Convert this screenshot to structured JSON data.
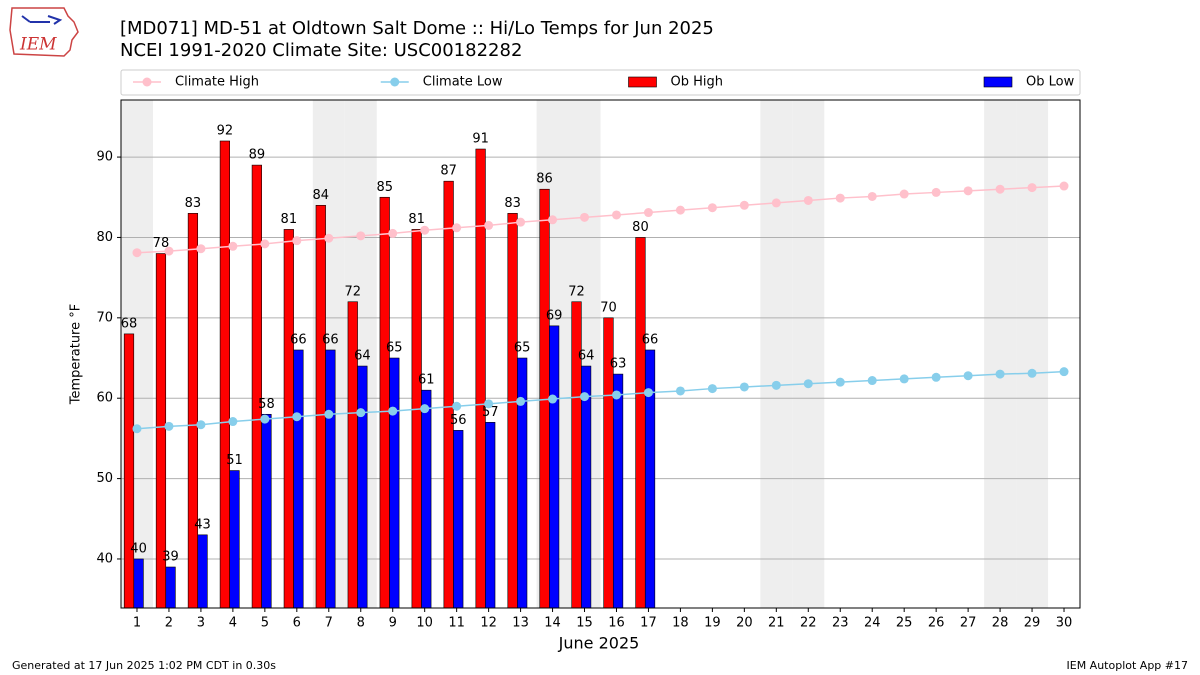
{
  "chart_data": {
    "type": "bar",
    "title": "[MD071] MD-51 at Oldtown Salt Dome  :: Hi/Lo Temps for Jun 2025",
    "subtitle": "NCEI 1991-2020 Climate Site: USC00182282",
    "x_label": "June 2025",
    "y_label": "Temperature °F",
    "logo_text": "IEM",
    "footer_left": "Generated at 17 Jun 2025 1:02 PM CDT in 0.30s",
    "footer_right": "IEM Autoplot App #17",
    "x": [
      1,
      2,
      3,
      4,
      5,
      6,
      7,
      8,
      9,
      10,
      11,
      12,
      13,
      14,
      15,
      16,
      17,
      18,
      19,
      20,
      21,
      22,
      23,
      24,
      25,
      26,
      27,
      28,
      29,
      30
    ],
    "xlim": [
      0.5,
      30.5
    ],
    "xticks": [
      1,
      2,
      3,
      4,
      5,
      6,
      7,
      8,
      9,
      10,
      11,
      12,
      13,
      14,
      15,
      16,
      17,
      18,
      19,
      20,
      21,
      22,
      23,
      24,
      25,
      26,
      27,
      28,
      29,
      30
    ],
    "ylim": [
      33.9,
      97.1
    ],
    "yticks": [
      40,
      50,
      60,
      70,
      80,
      90
    ],
    "grid": "y",
    "legend": "top",
    "weekend_days": [
      1,
      7,
      8,
      14,
      15,
      21,
      22,
      28,
      29
    ],
    "weekend_color": "#eeeeee",
    "series": [
      {
        "name": "Climate High",
        "type": "line",
        "color": "#ffc0cb",
        "values": [
          78.1,
          78.3,
          78.6,
          78.9,
          79.2,
          79.6,
          79.9,
          80.2,
          80.5,
          80.9,
          81.2,
          81.5,
          81.9,
          82.2,
          82.5,
          82.8,
          83.1,
          83.4,
          83.7,
          84.0,
          84.3,
          84.6,
          84.9,
          85.1,
          85.4,
          85.6,
          85.8,
          86.0,
          86.2,
          86.4
        ]
      },
      {
        "name": "Climate Low",
        "type": "line",
        "color": "#87ceeb",
        "values": [
          56.2,
          56.5,
          56.7,
          57.1,
          57.4,
          57.7,
          58.0,
          58.2,
          58.4,
          58.7,
          59.0,
          59.3,
          59.6,
          59.9,
          60.2,
          60.4,
          60.7,
          60.9,
          61.2,
          61.4,
          61.6,
          61.8,
          62.0,
          62.2,
          62.4,
          62.6,
          62.8,
          63.0,
          63.1,
          63.3
        ]
      },
      {
        "name": "Ob High",
        "type": "bar",
        "color": "#ff0000",
        "values": [
          68,
          78,
          83,
          92,
          89,
          81,
          84,
          72,
          85,
          81,
          87,
          91,
          83,
          86,
          72,
          70,
          80,
          null,
          null,
          null,
          null,
          null,
          null,
          null,
          null,
          null,
          null,
          null,
          null,
          null
        ]
      },
      {
        "name": "Ob Low",
        "type": "bar",
        "color": "#0000ff",
        "values": [
          40,
          39,
          43,
          51,
          58,
          66,
          66,
          64,
          65,
          61,
          56,
          57,
          65,
          69,
          64,
          63,
          66,
          null,
          null,
          null,
          null,
          null,
          null,
          null,
          null,
          null,
          null,
          null,
          null,
          null
        ]
      }
    ]
  }
}
